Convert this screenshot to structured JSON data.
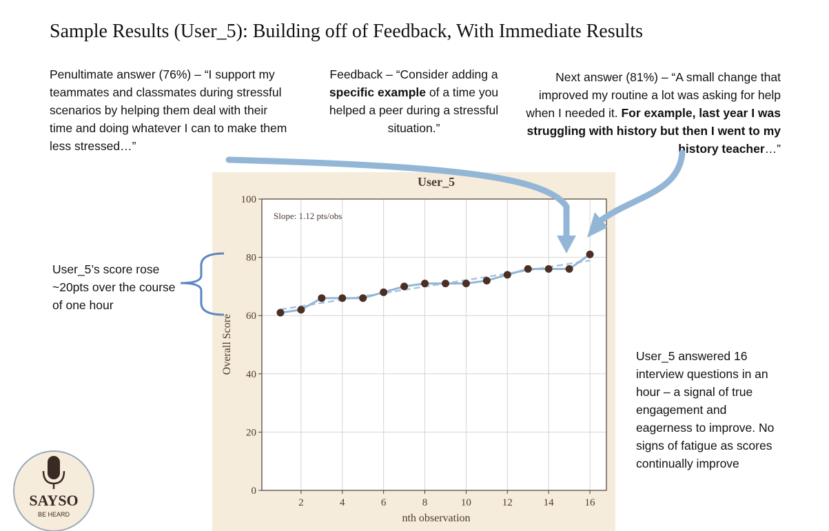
{
  "slide_title": "Sample Results (User_5):  Building off of Feedback, With Immediate Results",
  "penultimate_note": [
    {
      "text": "Penultimate answer (76%) – “I support my teammates and classmates during stressful scenarios by helping them deal with their time and doing whatever I can to make them less stressed…”",
      "bold": false
    }
  ],
  "feedback_note": [
    {
      "text": "Feedback – “Consider adding a ",
      "bold": false
    },
    {
      "text": "specific example",
      "bold": true
    },
    {
      "text": " of a time you helped a peer during a stressful situation.”",
      "bold": false
    }
  ],
  "next_note": [
    {
      "text": "Next answer (81%) – “A small change that improved my routine a lot was asking for help when I needed it. ",
      "bold": false
    },
    {
      "text": "For example, last year I was struggling with history but then I went to my history teacher",
      "bold": true
    },
    {
      "text": "…”",
      "bold": false
    }
  ],
  "score_note": "User_5’s score rose ~20pts over the course of one hour",
  "engagement_note": "User_5 answered 16 interview questions in an hour – a signal of true engagement and eagerness to improve. No signs of fatigue as scores continually improve",
  "logo": {
    "name": "SAYSO",
    "tagline": "BE HEARD"
  },
  "chart_data": {
    "type": "line",
    "title": "User_5",
    "annotation": "Slope: 1.12 pts/obs",
    "x_label": "nth observation",
    "y_label": "Overall Score",
    "x": [
      1,
      2,
      3,
      4,
      5,
      6,
      7,
      8,
      9,
      10,
      11,
      12,
      13,
      14,
      15,
      16
    ],
    "series": [
      {
        "name": "User_5",
        "color": "#93b6d6",
        "marker_color": "#4b2e24",
        "values": [
          61,
          62,
          66,
          66,
          66,
          68,
          70,
          71,
          71,
          71,
          72,
          74,
          76,
          76,
          76,
          81
        ]
      }
    ],
    "trend_line": {
      "x": [
        1,
        16
      ],
      "values": [
        62.1,
        78.9
      ],
      "color": "#a9c4dd"
    },
    "xlim": [
      0.1,
      16.8
    ],
    "ylim": [
      0,
      100
    ],
    "xticks": [
      2,
      4,
      6,
      8,
      10,
      12,
      14,
      16
    ],
    "yticks": [
      0,
      20,
      40,
      60,
      80,
      100
    ],
    "grid": true
  }
}
